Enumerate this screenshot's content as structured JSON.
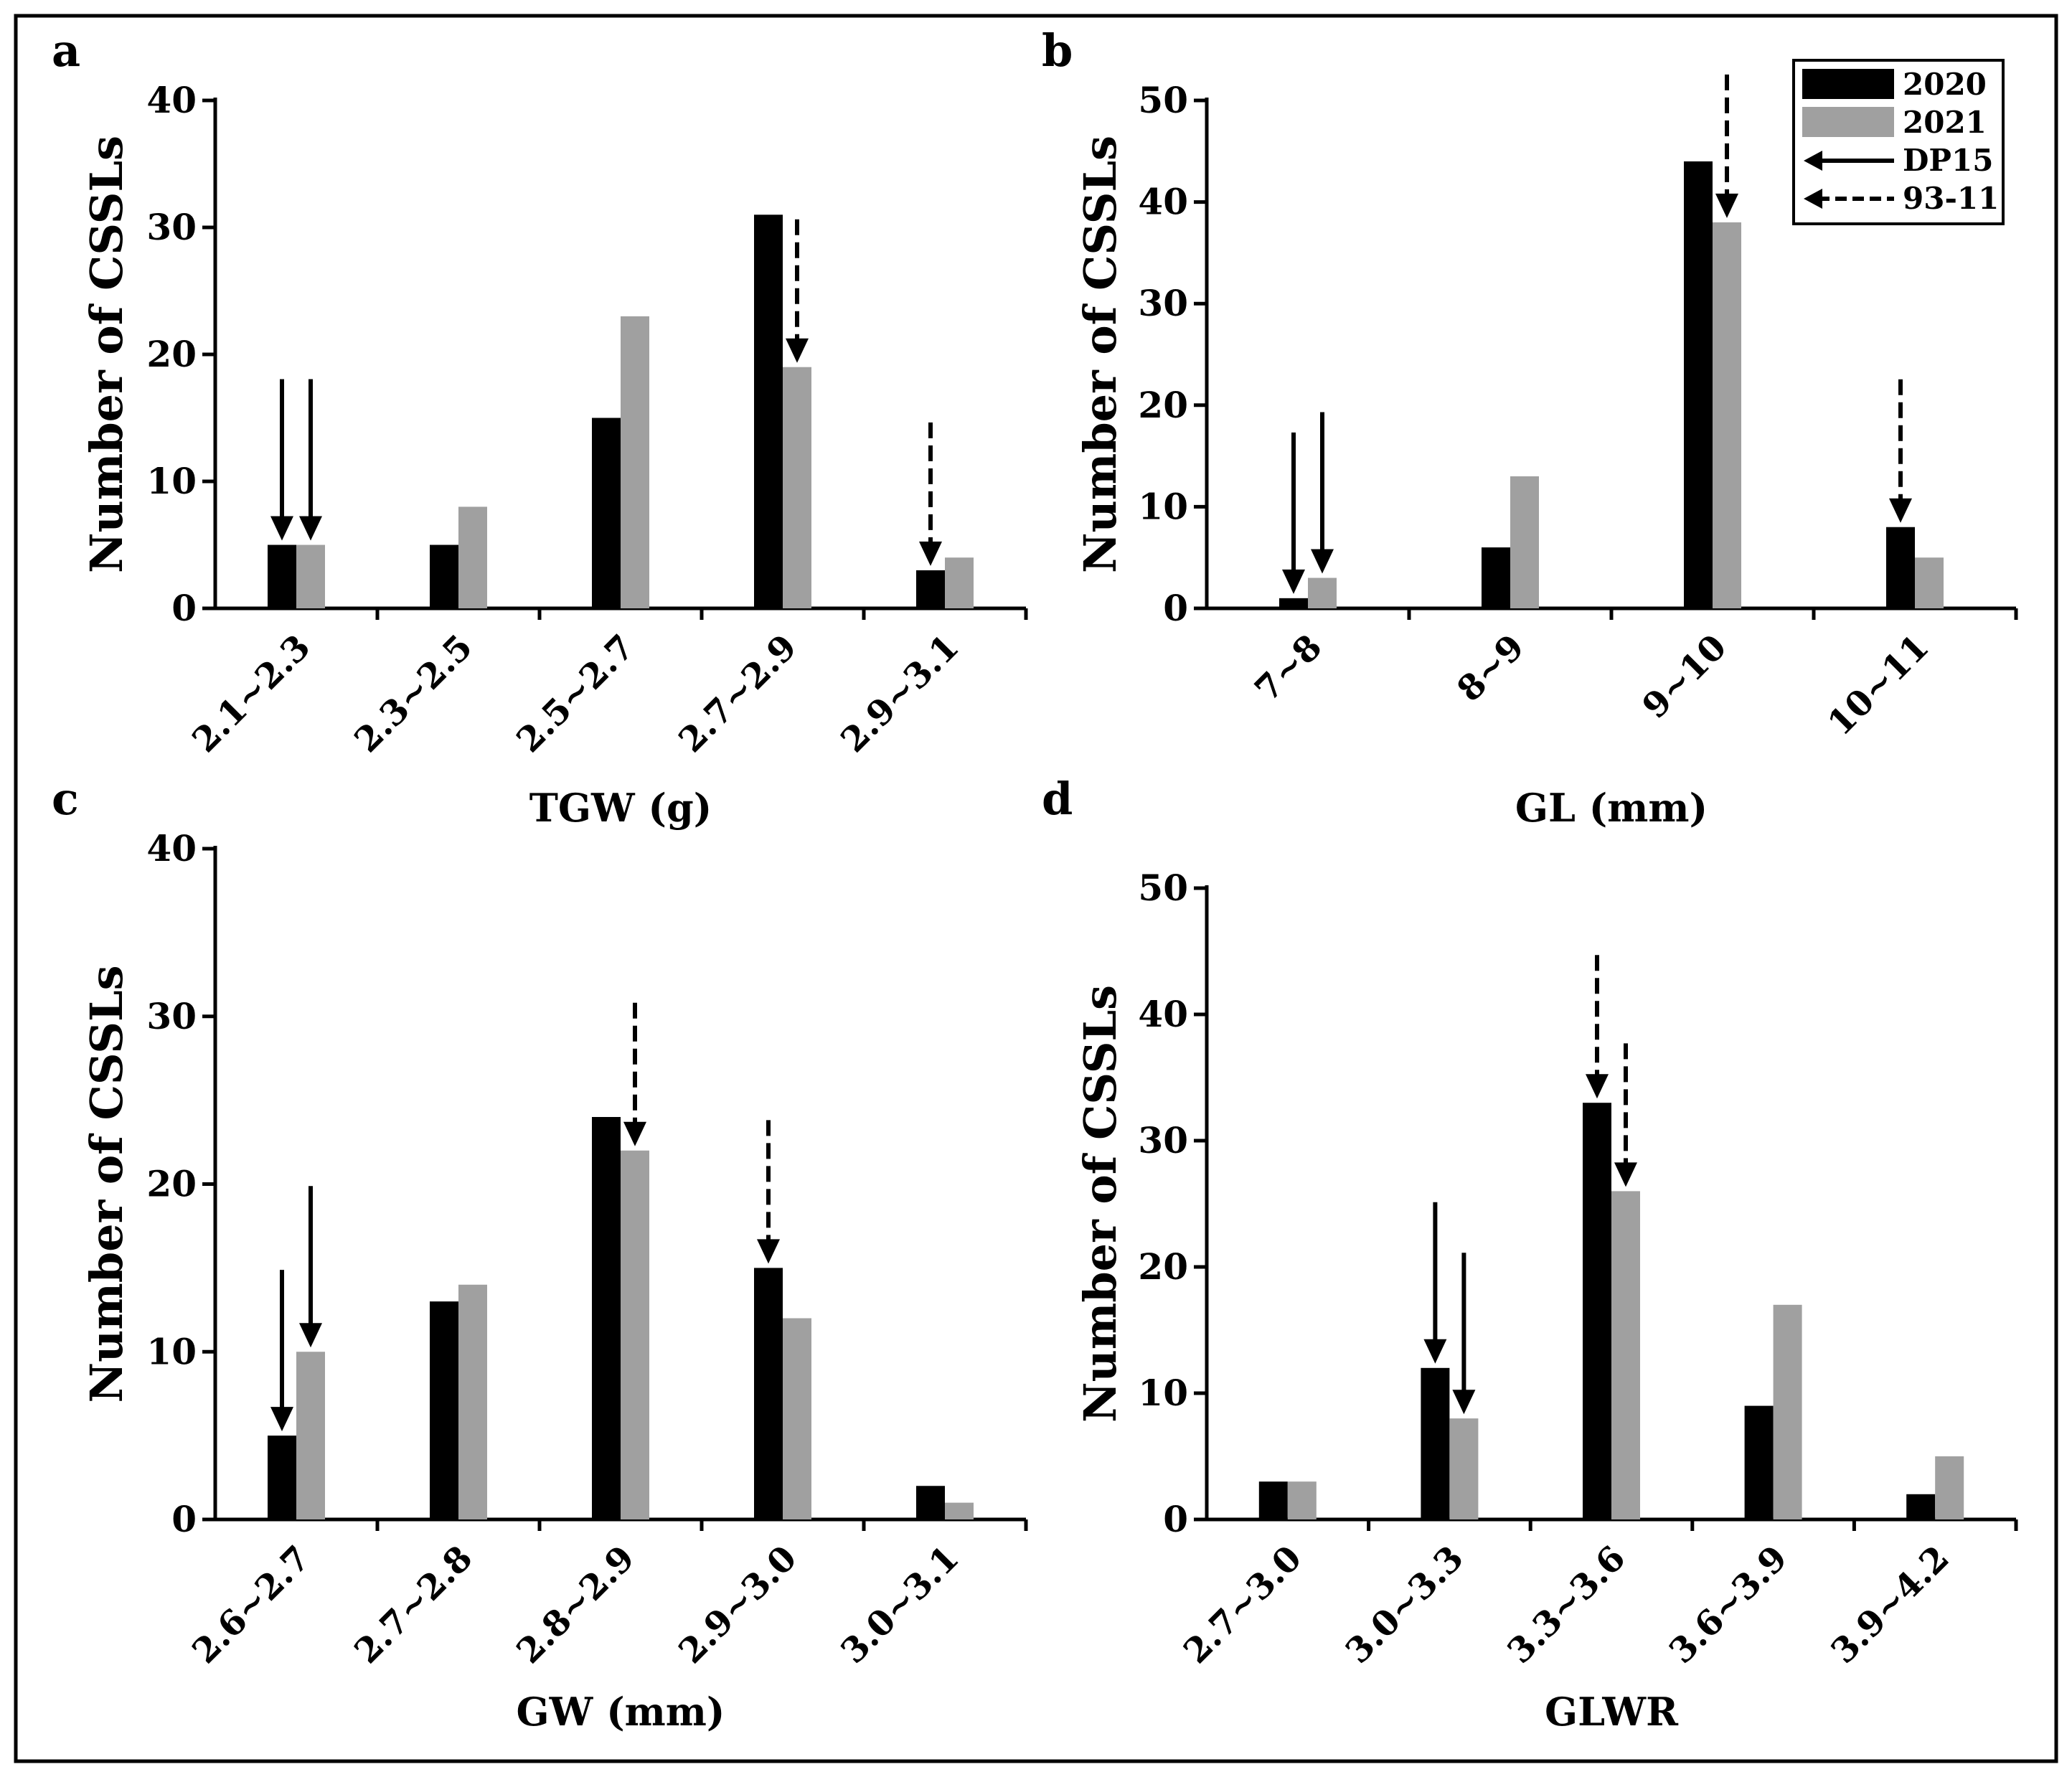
{
  "colors": {
    "series_2020": "#000000",
    "series_2021": "#a0a0a0",
    "axis": "#000000",
    "frame": "#000000"
  },
  "legend": {
    "entries": [
      {
        "label": "2020",
        "kind": "swatch",
        "series": "2020"
      },
      {
        "label": "2021",
        "kind": "swatch",
        "series": "2021"
      },
      {
        "label": "DP15",
        "kind": "solid-arrow"
      },
      {
        "label": "93-11",
        "kind": "dashed-arrow"
      }
    ]
  },
  "chart_data": [
    {
      "panel": "a",
      "type": "bar",
      "xlabel": "TGW (g)",
      "ylabel": "Number of CSSLs",
      "ylim": [
        0,
        40
      ],
      "yticks": [
        0,
        10,
        20,
        30,
        40
      ],
      "categories": [
        "2.1~2.3",
        "2.3~2.5",
        "2.5~2.7",
        "2.7~2.9",
        "2.9~3.1"
      ],
      "series": [
        {
          "name": "2020",
          "values": [
            5,
            5,
            15,
            31,
            3
          ]
        },
        {
          "name": "2021",
          "values": [
            5,
            8,
            23,
            19,
            4
          ]
        }
      ],
      "annotations": [
        {
          "label": "DP15",
          "style": "solid",
          "category": "2.1~2.3",
          "series": "2020",
          "value": 5
        },
        {
          "label": "DP15",
          "style": "solid",
          "category": "2.1~2.3",
          "series": "2021",
          "value": 5
        },
        {
          "label": "93-11",
          "style": "dashed",
          "category": "2.7~2.9",
          "series": "2021",
          "value": 19
        },
        {
          "label": "93-11",
          "style": "dashed",
          "category": "2.9~3.1",
          "series": "2020",
          "value": 3
        }
      ]
    },
    {
      "panel": "b",
      "type": "bar",
      "xlabel": "GL (mm)",
      "ylabel": "Number of CSSLs",
      "ylim": [
        0,
        50
      ],
      "yticks": [
        0,
        10,
        20,
        30,
        40,
        50
      ],
      "categories": [
        "7~8",
        "8~9",
        "9~10",
        "10~11"
      ],
      "series": [
        {
          "name": "2020",
          "values": [
            1,
            6,
            44,
            8
          ]
        },
        {
          "name": "2021",
          "values": [
            3,
            13,
            38,
            5
          ]
        }
      ],
      "annotations": [
        {
          "label": "DP15",
          "style": "solid",
          "category": "7~8",
          "series": "2020",
          "value": 1
        },
        {
          "label": "DP15",
          "style": "solid",
          "category": "7~8",
          "series": "2021",
          "value": 3
        },
        {
          "label": "93-11",
          "style": "dashed",
          "category": "9~10",
          "series": "2021",
          "value": 38
        },
        {
          "label": "93-11",
          "style": "dashed",
          "category": "10~11",
          "series": "2020",
          "value": 8
        }
      ],
      "show_legend": true
    },
    {
      "panel": "c",
      "type": "bar",
      "xlabel": "GW (mm)",
      "ylabel": "Number of CSSLs",
      "ylim": [
        0,
        40
      ],
      "yticks": [
        0,
        10,
        20,
        30,
        40
      ],
      "categories": [
        "2.6~2.7",
        "2.7~2.8",
        "2.8~2.9",
        "2.9~3.0",
        "3.0~3.1"
      ],
      "series": [
        {
          "name": "2020",
          "values": [
            5,
            13,
            24,
            15,
            2
          ]
        },
        {
          "name": "2021",
          "values": [
            10,
            14,
            22,
            12,
            1
          ]
        }
      ],
      "annotations": [
        {
          "label": "DP15",
          "style": "solid",
          "category": "2.6~2.7",
          "series": "2020",
          "value": 5
        },
        {
          "label": "DP15",
          "style": "solid",
          "category": "2.6~2.7",
          "series": "2021",
          "value": 10
        },
        {
          "label": "93-11",
          "style": "dashed",
          "category": "2.8~2.9",
          "series": "2021",
          "value": 22
        },
        {
          "label": "93-11",
          "style": "dashed",
          "category": "2.9~3.0",
          "series": "2020",
          "value": 15
        }
      ]
    },
    {
      "panel": "d",
      "type": "bar",
      "xlabel": "GLWR",
      "ylabel": "Number of CSSLs",
      "ylim": [
        0,
        50
      ],
      "yticks": [
        0,
        10,
        20,
        30,
        40,
        50
      ],
      "categories": [
        "2.7~3.0",
        "3.0~3.3",
        "3.3~3.6",
        "3.6~3.9",
        "3.9~4.2"
      ],
      "series": [
        {
          "name": "2020",
          "values": [
            3,
            12,
            33,
            9,
            2
          ]
        },
        {
          "name": "2021",
          "values": [
            3,
            8,
            26,
            17,
            5
          ]
        }
      ],
      "annotations": [
        {
          "label": "DP15",
          "style": "solid",
          "category": "3.0~3.3",
          "series": "2020",
          "value": 12
        },
        {
          "label": "DP15",
          "style": "solid",
          "category": "3.0~3.3",
          "series": "2021",
          "value": 8
        },
        {
          "label": "93-11",
          "style": "dashed",
          "category": "3.3~3.6",
          "series": "2020",
          "value": 33
        },
        {
          "label": "93-11",
          "style": "dashed",
          "category": "3.3~3.6",
          "series": "2021",
          "value": 26
        }
      ]
    }
  ]
}
